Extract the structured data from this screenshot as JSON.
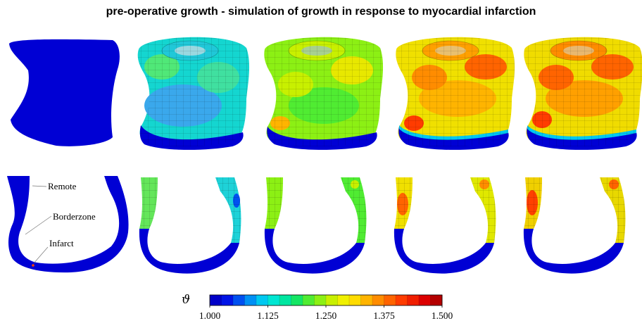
{
  "title": "pre-operative growth - simulation of growth in response to myocardial infarction",
  "annotations": {
    "remote": "Remote",
    "borderzone": "Borderzone",
    "infarct": "Infarct"
  },
  "colorbar": {
    "symbol": "ϑ",
    "min": 1.0,
    "max": 1.5,
    "steps": 20,
    "ticks": [
      "1.000",
      "1.125",
      "1.250",
      "1.375",
      "1.500"
    ],
    "colors": [
      "#0000c8",
      "#0014e6",
      "#0050f0",
      "#0090f4",
      "#00c8f0",
      "#00e6d2",
      "#00e6a0",
      "#14e664",
      "#50ec32",
      "#8cf014",
      "#c8f000",
      "#f0f000",
      "#ffdc00",
      "#ffb400",
      "#ff8c00",
      "#ff6400",
      "#ff3c00",
      "#f01e00",
      "#dc0000",
      "#b40000"
    ]
  },
  "stages": [
    {
      "id": "stage-1",
      "level": 0.0
    },
    {
      "id": "stage-2",
      "level": 0.3
    },
    {
      "id": "stage-3",
      "level": 0.55
    },
    {
      "id": "stage-4",
      "level": 0.8
    },
    {
      "id": "stage-5",
      "level": 0.9
    }
  ]
}
